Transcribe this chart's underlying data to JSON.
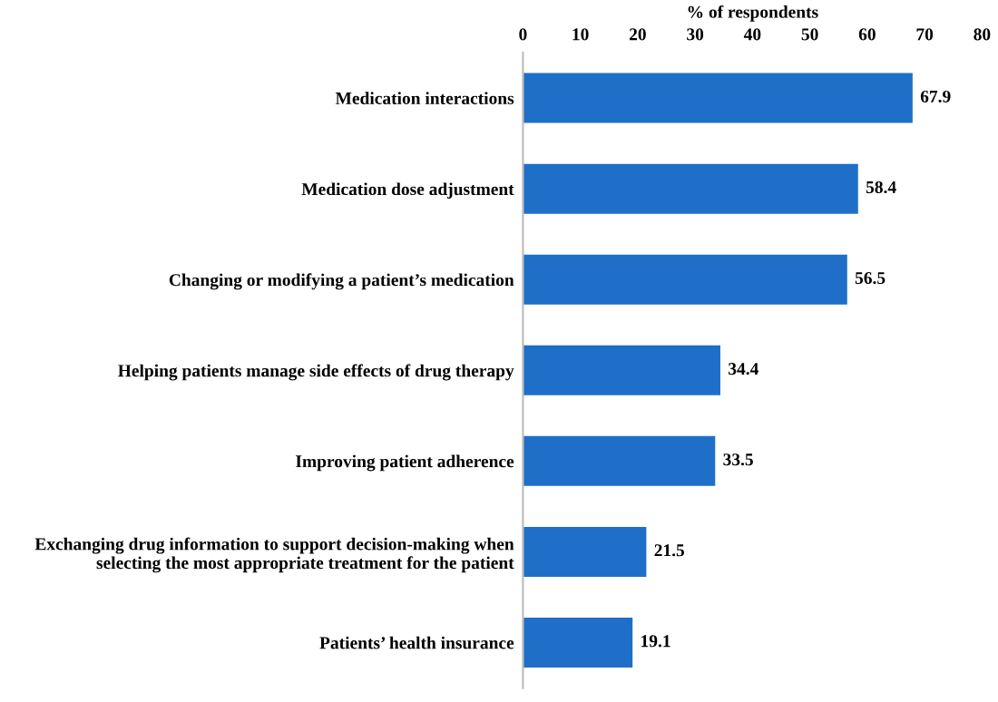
{
  "chart_data": {
    "type": "bar",
    "orientation": "horizontal",
    "xlabel": "% of respondents",
    "categories": [
      "Medication interactions",
      "Medication dose adjustment",
      "Changing or modifying a patient’s medication",
      "Helping patients manage side effects of drug therapy",
      "Improving patient adherence",
      "Exchanging drug information to support decision-making when selecting the most appropriate treatment for the patient",
      "Patients’ health insurance"
    ],
    "values": [
      67.9,
      58.4,
      56.5,
      34.4,
      33.5,
      21.5,
      19.1
    ],
    "color": "#1f6fc8",
    "xlim": [
      0,
      80
    ],
    "xticks": [
      0,
      10,
      20,
      30,
      40,
      50,
      60,
      70,
      80
    ],
    "data_labels": true,
    "grid": false,
    "legend": false
  }
}
